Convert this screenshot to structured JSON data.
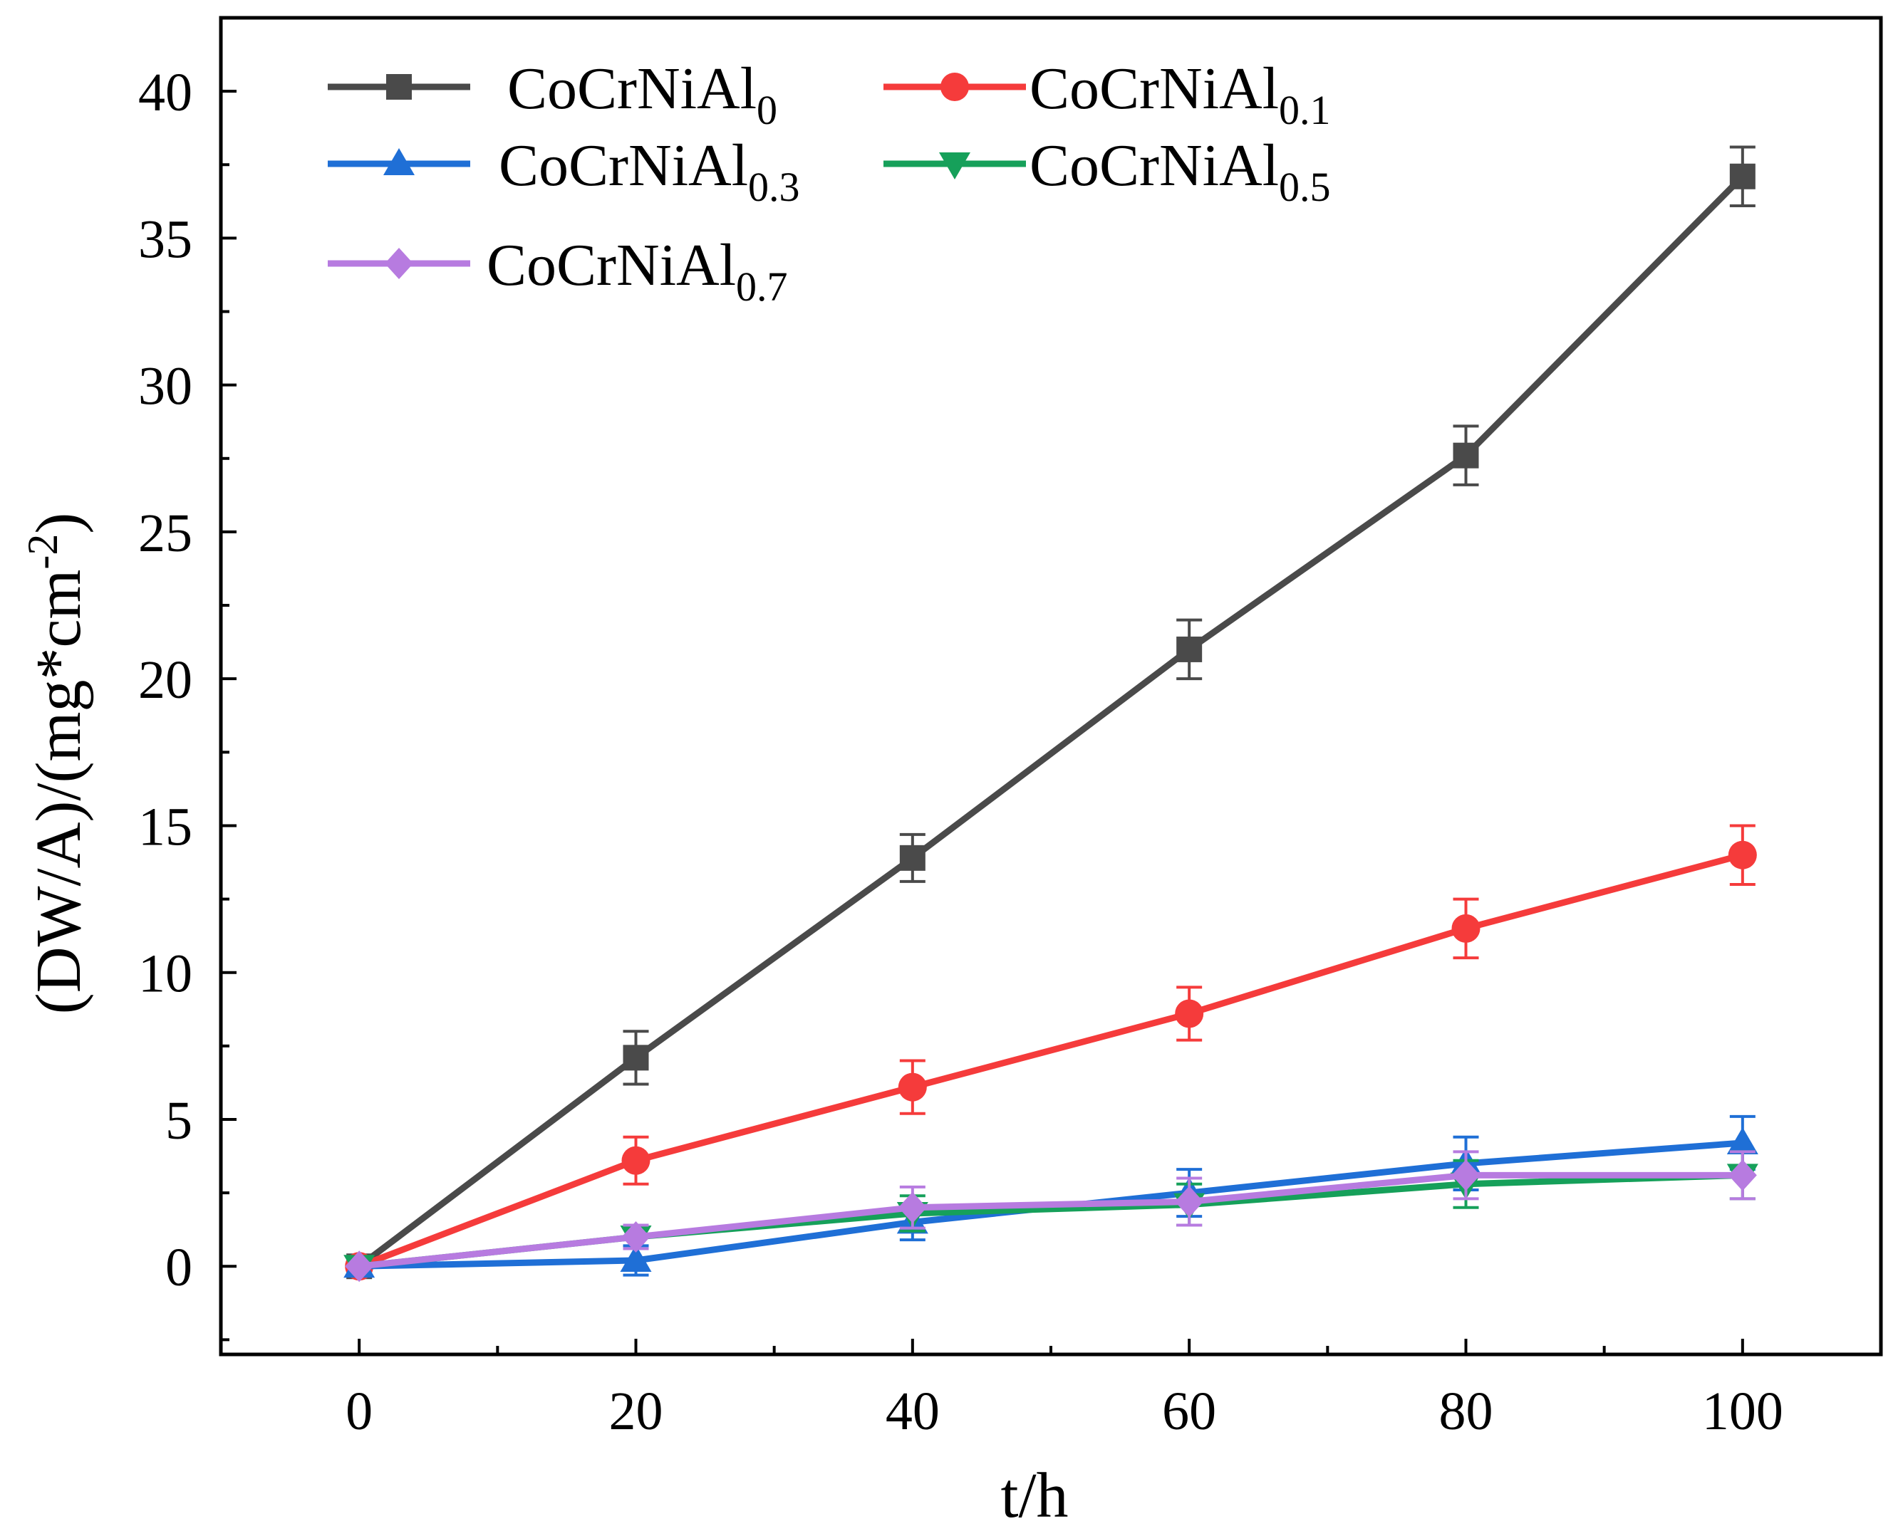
{
  "chart_data": {
    "type": "line",
    "title": "",
    "xlabel": "t/h",
    "ylabel_main": "(DW/A)/(mg*cm",
    "ylabel_sup": "-2",
    "ylabel_close": ")",
    "xlim": [
      -10,
      110
    ],
    "ylim": [
      -3,
      42.5
    ],
    "x_ticks": [
      0,
      20,
      40,
      60,
      80,
      100
    ],
    "x_tick_labels": [
      "0",
      "20",
      "40",
      "60",
      "80",
      "100"
    ],
    "x_minor_ticks": [
      10,
      30,
      50,
      70,
      90
    ],
    "y_ticks": [
      0,
      5,
      10,
      15,
      20,
      25,
      30,
      35,
      40
    ],
    "y_tick_labels": [
      "0",
      "5",
      "10",
      "15",
      "20",
      "25",
      "30",
      "35",
      "40"
    ],
    "y_minor_ticks": [
      -2.5,
      2.5,
      7.5,
      12.5,
      17.5,
      22.5,
      27.5,
      32.5,
      37.5,
      42.5
    ],
    "grid": false,
    "legend_position": "top-left",
    "x": [
      0,
      20,
      40,
      60,
      80,
      100
    ],
    "series": [
      {
        "name": "CoCrNiAl",
        "sub": "0",
        "color": "#4a4a4a",
        "marker": "square",
        "values": [
          0,
          7.1,
          13.9,
          21.0,
          27.6,
          37.1
        ],
        "errors": [
          0,
          0.9,
          0.8,
          1.0,
          1.0,
          1.0
        ]
      },
      {
        "name": "CoCrNiAl",
        "sub": "0.1",
        "color": "#f53b3b",
        "marker": "circle",
        "values": [
          0,
          3.6,
          6.1,
          8.6,
          11.5,
          14.0
        ],
        "errors": [
          0,
          0.8,
          0.9,
          0.9,
          1.0,
          1.0
        ]
      },
      {
        "name": "CoCrNiAl",
        "sub": "0.3",
        "color": "#1f6fd6",
        "marker": "triangle-up",
        "values": [
          0,
          0.2,
          1.5,
          2.5,
          3.5,
          4.2
        ],
        "errors": [
          0,
          0.5,
          0.6,
          0.8,
          0.9,
          0.9
        ]
      },
      {
        "name": "CoCrNiAl",
        "sub": "0.5",
        "color": "#16a05a",
        "marker": "triangle-down",
        "values": [
          0,
          1.0,
          1.8,
          2.1,
          2.8,
          3.1
        ],
        "errors": [
          0,
          0.4,
          0.6,
          0.7,
          0.8,
          0.8
        ]
      },
      {
        "name": "CoCrNiAl",
        "sub": "0.7",
        "color": "#b77be0",
        "marker": "diamond",
        "values": [
          0,
          1.0,
          2.0,
          2.2,
          3.1,
          3.1
        ],
        "errors": [
          0,
          0.4,
          0.7,
          0.8,
          0.8,
          0.8
        ]
      }
    ]
  }
}
